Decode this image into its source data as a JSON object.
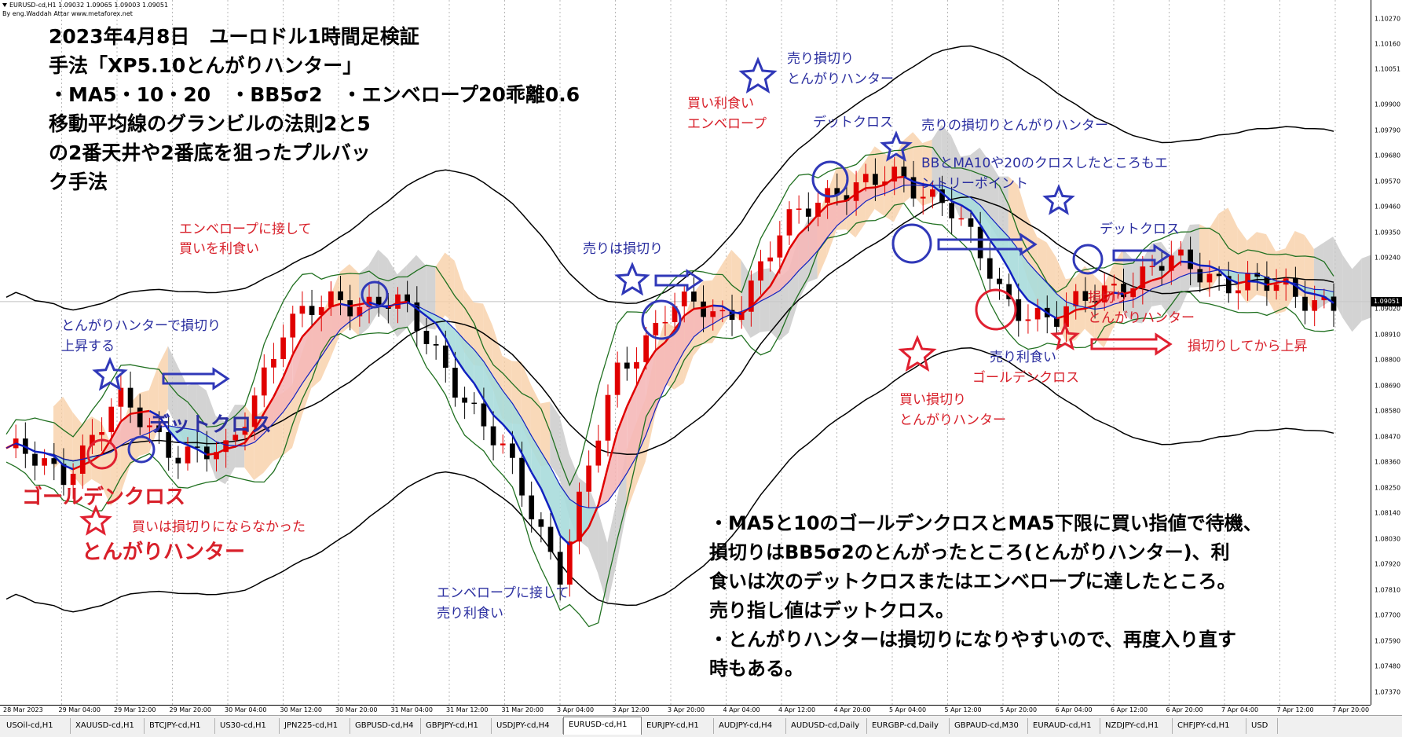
{
  "symbol_info": {
    "line1": "EURUSD-cd,H1  1.09032 1.09065 1.09003 1.09051",
    "line2": "By eng.Waddah Attar  www.metaforex.net"
  },
  "title_lines": [
    "2023年4月8日　ユーロドル1時間足検証",
    "手法「XP5.10とんがりハンター」",
    "・MA5・10・20　・BB5σ2　・エンベロープ20乖離0.6",
    "移動平均線のグランビルの法則2と5",
    "の2番天井や2番底を狙ったプルバッ",
    "ク手法"
  ],
  "annotations": {
    "a1": "エンベロープに接して",
    "a2": "買いを利食い",
    "a3": "とんがりハンターで損切り",
    "a4": "上昇する",
    "a5": "デットクロス",
    "a6": "ゴールデンクロス",
    "a7": "買いは損切りにならなかった",
    "a8": "とんがりハンター",
    "a9": "エンベロープに接して",
    "a10": "売り利食い",
    "a11": "売りは損切り",
    "a12": "買い利食い",
    "a13": "エンベロープ",
    "a14": "売り損切り",
    "a15": "とんがりハンター",
    "a16": "デットクロス",
    "a17": "売りの損切りとんがりハンター",
    "a18": "BBとMA10や20のクロスしたところもエ",
    "a19": "ントリーポイント",
    "a20": "デットクロス",
    "a21": "損切り",
    "a22": "とんがりハンター",
    "a23": "損切りしてから上昇",
    "a24": "売り利食い",
    "a25": "ゴールデンクロス",
    "a26": "買い損切り",
    "a27": "とんがりハンター"
  },
  "note_lines": [
    "・MA5と10のゴールデンクロスとMA5下限に買い指値で待機、",
    "損切りはBB5σ2のとんがったところ(とんがりハンター)、利",
    "食いは次のデットクロスまたはエンベロープに達したところ。",
    "売り指し値はデットクロス。",
    "・とんがりハンターは損切りになりやすいので、再度入り直す",
    "時もある。"
  ],
  "price_axis": {
    "labels": [
      "1.10270",
      "1.10160",
      "1.10051",
      "1.09900",
      "1.09790",
      "1.09680",
      "1.09570",
      "1.09460",
      "1.09350",
      "1.09240",
      "1.09020",
      "1.08910",
      "1.08800",
      "1.08690",
      "1.08580",
      "1.08470",
      "1.08360",
      "1.08250",
      "1.08140",
      "1.08030",
      "1.07920",
      "1.07810",
      "1.07700",
      "1.07590",
      "1.07480",
      "1.07370"
    ],
    "current": "1.09051"
  },
  "time_axis": [
    "28 Mar 2023",
    "29 Mar 04:00",
    "29 Mar 12:00",
    "29 Mar 20:00",
    "30 Mar 04:00",
    "30 Mar 12:00",
    "30 Mar 20:00",
    "31 Mar 04:00",
    "31 Mar 12:00",
    "31 Mar 20:00",
    "3 Apr 04:00",
    "3 Apr 12:00",
    "3 Apr 20:00",
    "4 Apr 04:00",
    "4 Apr 12:00",
    "4 Apr 20:00",
    "5 Apr 04:00",
    "5 Apr 12:00",
    "5 Apr 20:00",
    "6 Apr 04:00",
    "6 Apr 12:00",
    "6 Apr 20:00",
    "7 Apr 04:00",
    "7 Apr 12:00",
    "7 Apr 20:00"
  ],
  "tabs": [
    "USOil-cd,H1",
    "XAUUSD-cd,H1",
    "BTCJPY-cd,H1",
    "US30-cd,H1",
    "JPN225-cd,H1",
    "GBPUSD-cd,H4",
    "GBPJPY-cd,H1",
    "USDJPY-cd,H4",
    "EURUSD-cd,H1",
    "EURJPY-cd,H1",
    "AUDJPY-cd,H4",
    "AUDUSD-cd,Daily",
    "EURGBP-cd,Daily",
    "GBPAUD-cd,M30",
    "EURAUD-cd,H1",
    "NZDJPY-cd,H1",
    "CHFJPY-cd,H1",
    "USD"
  ],
  "active_tab": "EURUSD-cd,H1",
  "colors": {
    "bull": "#e00000",
    "bear": "#000000",
    "ma_blue": "#1020c0",
    "ma_red": "#e00000",
    "envelope": "#000000",
    "bb": "#207020",
    "cloud_pos": "#f8d0a8",
    "cloud_neg": "#c8c8c8",
    "fill_red": "#f5b8b8",
    "fill_blue": "#a8dcdc",
    "mark_blue": "#3038b8",
    "mark_red": "#e02030"
  },
  "chart_data": {
    "type": "candlestick",
    "symbol": "EURUSD-cd,H1",
    "ohlc_last": {
      "open": 1.09032,
      "high": 1.09065,
      "low": 1.09003,
      "close": 1.09051
    },
    "price_range": [
      1.07315,
      1.1035
    ],
    "key_points": [
      {
        "x": "28 Mar 2023",
        "price": 1.0842
      },
      {
        "x": "29 Mar 04:00",
        "price": 1.083
      },
      {
        "x": "29 Mar 12:00",
        "price": 1.0862
      },
      {
        "x": "29 Mar 20:00",
        "price": 1.0842
      },
      {
        "x": "30 Mar 04:00",
        "price": 1.0838
      },
      {
        "x": "30 Mar 12:00",
        "price": 1.0895
      },
      {
        "x": "30 Mar 20:00",
        "price": 1.0905
      },
      {
        "x": "31 Mar 04:00",
        "price": 1.0906
      },
      {
        "x": "31 Mar 12:00",
        "price": 1.0875
      },
      {
        "x": "31 Mar 20:00",
        "price": 1.0838
      },
      {
        "x": "3 Apr 04:00",
        "price": 1.079
      },
      {
        "x": "3 Apr 12:00",
        "price": 1.0872
      },
      {
        "x": "3 Apr 20:00",
        "price": 1.0905
      },
      {
        "x": "4 Apr 04:00",
        "price": 1.0897
      },
      {
        "x": "4 Apr 12:00",
        "price": 1.0935
      },
      {
        "x": "4 Apr 20:00",
        "price": 1.0955
      },
      {
        "x": "5 Apr 04:00",
        "price": 1.0957
      },
      {
        "x": "5 Apr 12:00",
        "price": 1.095
      },
      {
        "x": "5 Apr 20:00",
        "price": 1.0905
      },
      {
        "x": "6 Apr 04:00",
        "price": 1.0898
      },
      {
        "x": "6 Apr 12:00",
        "price": 1.0912
      },
      {
        "x": "6 Apr 20:00",
        "price": 1.0922
      },
      {
        "x": "7 Apr 04:00",
        "price": 1.0915
      },
      {
        "x": "7 Apr 12:00",
        "price": 1.091
      },
      {
        "x": "7 Apr 20:00",
        "price": 1.0905
      }
    ]
  }
}
